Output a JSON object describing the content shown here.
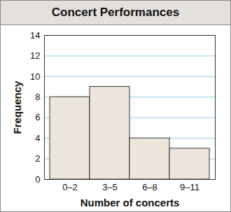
{
  "chart_data": {
    "type": "bar",
    "title": "Concert Performances",
    "x_label": "Number of concerts",
    "y_label": "Frequency",
    "categories": [
      "0–2",
      "3–5",
      "6–8",
      "9–11"
    ],
    "values": [
      8,
      9,
      4,
      3
    ],
    "color": "#ede6dc",
    "ylim": [
      0,
      14
    ],
    "yticks": [
      0,
      2,
      4,
      6,
      8,
      10,
      12,
      14
    ],
    "grid": true
  }
}
